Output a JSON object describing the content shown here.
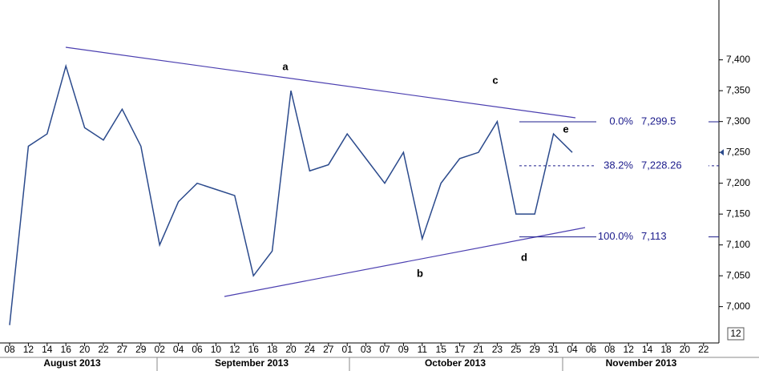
{
  "chart_data": {
    "type": "line",
    "categories": [
      "08",
      "12",
      "14",
      "16",
      "20",
      "22",
      "27",
      "29",
      "02",
      "04",
      "06",
      "10",
      "12",
      "16",
      "18",
      "20",
      "24",
      "27",
      "01",
      "03",
      "07",
      "09",
      "11",
      "15",
      "17",
      "21",
      "23",
      "25",
      "29",
      "31",
      "04",
      "06",
      "08",
      "12",
      "14",
      "18",
      "20",
      "22"
    ],
    "series": [
      {
        "color": "#2b4a8c",
        "values": [
          6970,
          7260,
          7280,
          7390,
          7290,
          7270,
          7320,
          7260,
          7100,
          7170,
          7200,
          7190,
          7180,
          7050,
          7090,
          7350,
          7220,
          7230,
          7280,
          7240,
          7200,
          7250,
          7110,
          7200,
          7240,
          7250,
          7300,
          7150,
          7150,
          7280,
          7250,
          null,
          null,
          null,
          null,
          null,
          null,
          null
        ]
      }
    ],
    "months": [
      "August 2013",
      "September 2013",
      "October 2013",
      "November 2013"
    ],
    "ylim": [
      6945,
      7497
    ],
    "yticks": [
      {
        "value": 7000,
        "label": "7,000"
      },
      {
        "value": 7050,
        "label": "7,050"
      },
      {
        "value": 7100,
        "label": "7,100"
      },
      {
        "value": 7150,
        "label": "7,150"
      },
      {
        "value": 7200,
        "label": "7,200"
      },
      {
        "value": 7250,
        "label": "7,250"
      },
      {
        "value": 7300,
        "label": "7,300"
      },
      {
        "value": 7350,
        "label": "7,350"
      },
      {
        "value": 7400,
        "label": "7,400"
      }
    ],
    "fib_levels": [
      {
        "pct": "0.0%",
        "value": 7299.5,
        "label": "7,299.5"
      },
      {
        "pct": "38.2%",
        "value": 7228.26,
        "label": "7,228.26"
      },
      {
        "pct": "100.0%",
        "value": 7113,
        "label": "7,113"
      }
    ],
    "wave_points": [
      "a",
      "b",
      "c",
      "d",
      "e"
    ],
    "corner_box": "12"
  }
}
